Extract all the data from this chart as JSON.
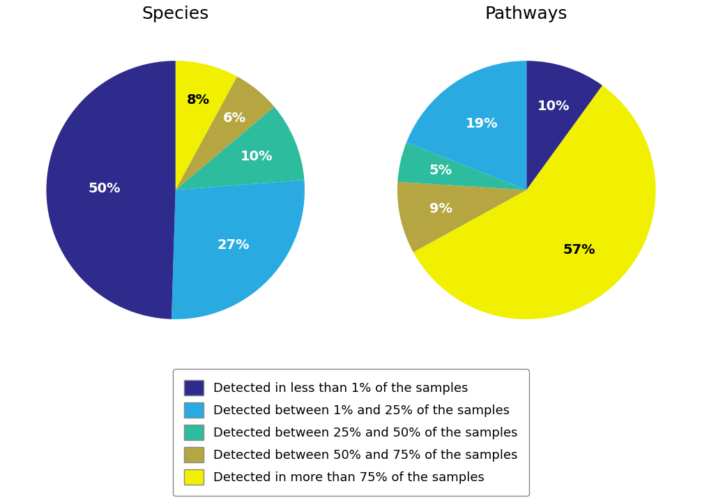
{
  "species_values": [
    8,
    6,
    10,
    27,
    50
  ],
  "species_labels": [
    "8%",
    "6%",
    "10%",
    "27%",
    "50%"
  ],
  "species_colors": [
    "#f0f000",
    "#b5a642",
    "#2ebc9e",
    "#29abe2",
    "#2e2b8c"
  ],
  "species_startangle": 90,
  "pathways_values": [
    10,
    57,
    9,
    5,
    19
  ],
  "pathways_labels": [
    "10%",
    "57%",
    "9%",
    "5%",
    "19%"
  ],
  "pathways_colors": [
    "#2e2b8c",
    "#f0f000",
    "#b5a642",
    "#2ebc9e",
    "#29abe2"
  ],
  "pathways_startangle": 90,
  "title_species": "Species",
  "title_pathways": "Pathways",
  "legend_labels": [
    "Detected in less than 1% of the samples",
    "Detected between 1% and 25% of the samples",
    "Detected between 25% and 50% of the samples",
    "Detected between 50% and 75% of the samples",
    "Detected in more than 75% of the samples"
  ],
  "legend_colors": [
    "#2e2b8c",
    "#29abe2",
    "#2ebc9e",
    "#b5a642",
    "#f0f000"
  ],
  "bg_color": "#ffffff",
  "title_fontsize": 18,
  "label_fontsize": 14,
  "legend_fontsize": 13,
  "species_label_radii": [
    0.72,
    0.72,
    0.68,
    0.62,
    0.55
  ],
  "pathways_label_radii": [
    0.68,
    0.62,
    0.68,
    0.68,
    0.62
  ]
}
